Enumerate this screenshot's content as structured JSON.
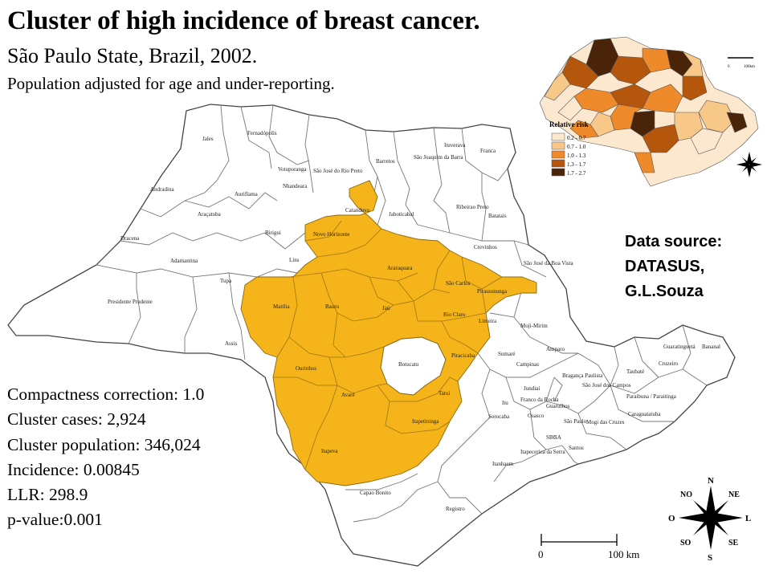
{
  "title": "Cluster of high incidence of breast cancer.",
  "subtitle": "São Paulo State, Brazil, 2002.",
  "note": "Population adjusted for age and under-reporting.",
  "source": {
    "line1": "Data source:",
    "line2": "DATASUS,",
    "line3": "G.L.Souza"
  },
  "stats": [
    "Compactness correction: 1.0",
    "Cluster cases: 2,924",
    "Cluster population: 346,024",
    "Incidence: 0.00845",
    "LLR: 298.9",
    "p-value:0.001"
  ],
  "colors": {
    "cluster": "#f4b41a",
    "boundary": "#555555",
    "rr_bins": [
      "#fbe8cf",
      "#f8c889",
      "#ee8a2a",
      "#b4570d",
      "#4a2408"
    ]
  },
  "regions": [
    "Jales",
    "Fernadópolis",
    "Votuporanga",
    "Barretos",
    "São Joaquim da Barra",
    "Ituverava",
    "Franca",
    "Andradina",
    "Auriflama",
    "Nhandeara",
    "São José do Rio Preto",
    "Jaboticabal",
    "Ribeirao Preto",
    "Batatais",
    "Araçatuba",
    "Birigui",
    "Catanduva",
    "Novo Horizonte",
    "Dracena",
    "Adamantina",
    "Lins",
    "Tupa",
    "Presidente Prudente",
    "Assis",
    "Marília",
    "Bauru",
    "Jaú",
    "Araraquara",
    "São Carlos",
    "Pirassununga",
    "Rio Claro",
    "Limeira",
    "Piracicaba",
    "Tatuí",
    "Itapetininga",
    "Avaré",
    "Ourinhos",
    "Itapeva",
    "Botucatu",
    "Crevinhos",
    "São José da Boa Vista",
    "Moji-Mirim",
    "Amparo",
    "Campinas",
    "Bragança Paulista",
    "Sumaré",
    "Jundiaí",
    "Itu",
    "Sorocaba",
    "Franco da Rocha",
    "Guarulhos",
    "São Paulo",
    "Osasco",
    "Mogi das Cruzes",
    "Itapecerica da Serra",
    "Santos",
    "Registro",
    "Capao Bonito",
    "Guaratinguetá",
    "Bananal",
    "Taubaté",
    "Cruzeiro",
    "Paraibuna / Paraitinga",
    "São José dos Campos",
    "Caraguatatuba",
    "Itanhaem",
    "SBC",
    "SA",
    "Moji das Cruzes"
  ],
  "cluster_regions": [
    "Catanduva",
    "Novo Horizonte",
    "Araraquara",
    "São Carlos",
    "Pirassununga",
    "Jaú",
    "Rio Claro",
    "Limeira",
    "Bauru",
    "Marília",
    "Piracicaba",
    "Ourinhos",
    "Avaré",
    "Tatuí",
    "Itapetininga",
    "Itapeva"
  ],
  "inset": {
    "legend_title": "Relative risk",
    "bins": [
      "0.2 - 0.7",
      "0.7 - 1.0",
      "1.0 - 1.3",
      "1.3 - 1.7",
      "1.7 - 2.7"
    ],
    "scale_labels": [
      "0",
      "100km"
    ]
  },
  "scale_bar": {
    "zero": "0",
    "end": "100 km"
  },
  "compass": {
    "n": "N",
    "s": "S",
    "l": "L",
    "o": "O",
    "ne": "NE",
    "no": "NO",
    "se": "SE",
    "so": "SO"
  }
}
